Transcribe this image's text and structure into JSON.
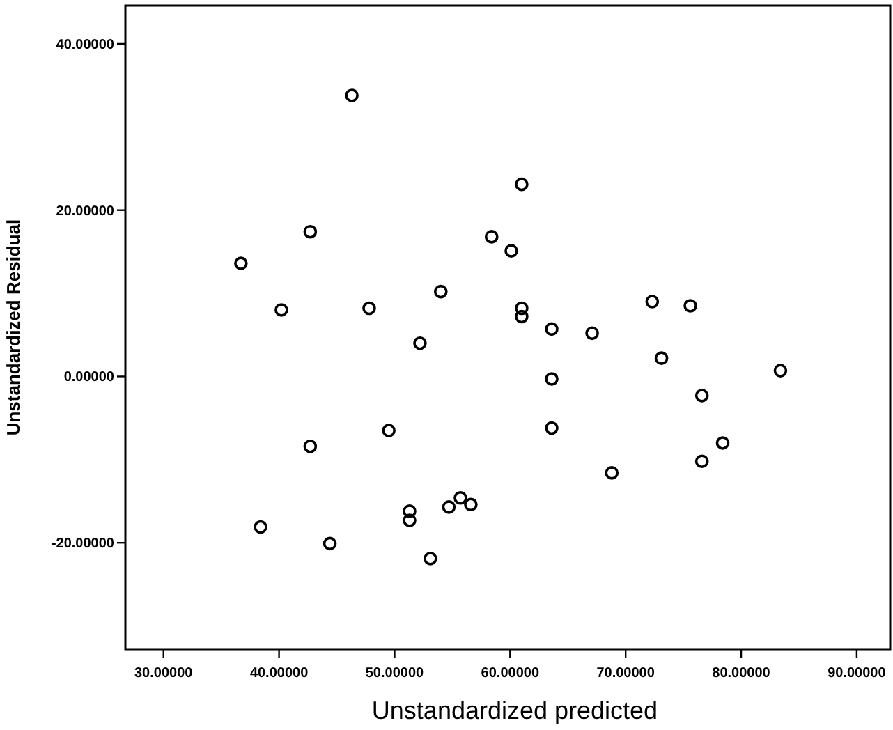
{
  "chart_data": {
    "type": "scatter",
    "xlabel": "Unstandardized predicted",
    "ylabel": "Unstandardized Residual",
    "xlim": [
      26.7,
      92.9
    ],
    "ylim": [
      -32.8,
      44.6
    ],
    "xticks": [
      {
        "value": 30,
        "label": "30.00000"
      },
      {
        "value": 40,
        "label": "40.00000"
      },
      {
        "value": 50,
        "label": "50.00000"
      },
      {
        "value": 60,
        "label": "60.00000"
      },
      {
        "value": 70,
        "label": "70.00000"
      },
      {
        "value": 80,
        "label": "80.00000"
      },
      {
        "value": 90,
        "label": "90.00000"
      }
    ],
    "yticks": [
      {
        "value": -20,
        "label": "-20.00000"
      },
      {
        "value": 0,
        "label": "0.00000"
      },
      {
        "value": 20,
        "label": "20.00000"
      },
      {
        "value": 40,
        "label": "40.00000"
      }
    ],
    "grid": false,
    "marker": "circle",
    "series": [
      {
        "color": "#000000",
        "x": [
          46.3,
          61.0,
          42.7,
          58.4,
          60.1,
          36.7,
          54.0,
          47.8,
          40.2,
          61.0,
          61.0,
          52.2,
          63.6,
          67.1,
          72.3,
          75.6,
          73.1,
          63.6,
          83.4,
          76.6,
          49.5,
          63.6,
          42.7,
          78.4,
          76.6,
          68.8,
          51.3,
          51.3,
          54.7,
          55.7,
          56.6,
          38.4,
          44.4,
          53.1
        ],
        "values": [
          33.8,
          23.1,
          17.4,
          16.8,
          15.1,
          13.6,
          10.2,
          8.2,
          8.0,
          8.2,
          7.2,
          4.0,
          5.7,
          5.2,
          9.0,
          8.5,
          2.2,
          -0.3,
          0.7,
          -2.3,
          -6.5,
          -6.2,
          -8.4,
          -8.0,
          -10.2,
          -11.6,
          -16.2,
          -17.3,
          -15.7,
          -14.6,
          -15.4,
          -18.1,
          -20.1,
          -21.9
        ]
      }
    ]
  }
}
